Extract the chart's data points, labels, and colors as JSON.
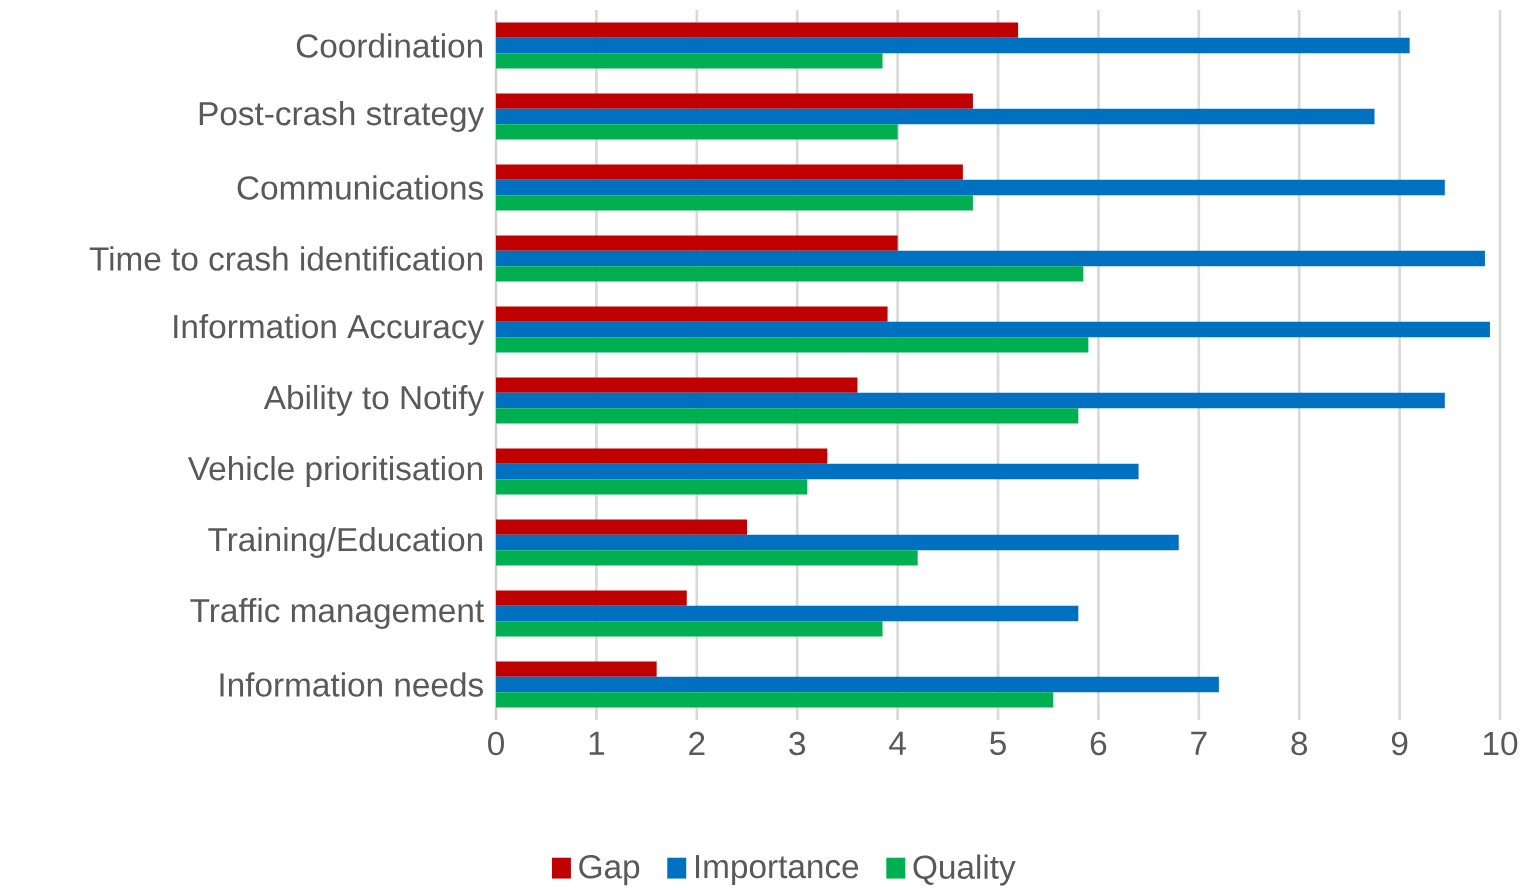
{
  "chart_data": {
    "type": "bar",
    "orientation": "horizontal",
    "categories": [
      "Coordination",
      "Post-crash strategy",
      "Communications",
      "Time to crash identification",
      "Information Accuracy",
      "Ability to Notify",
      "Vehicle prioritisation",
      "Training/Education",
      "Traffic management",
      "Information needs"
    ],
    "series": [
      {
        "name": "Gap",
        "color": "#c00000",
        "values": [
          5.2,
          4.75,
          4.65,
          4.0,
          3.9,
          3.6,
          3.3,
          2.5,
          1.9,
          1.6
        ]
      },
      {
        "name": "Importance",
        "color": "#0070c0",
        "values": [
          9.1,
          8.75,
          9.45,
          9.85,
          9.9,
          9.45,
          6.4,
          6.8,
          5.8,
          7.2
        ]
      },
      {
        "name": "Quality",
        "color": "#00b050",
        "values": [
          3.85,
          4.0,
          4.75,
          5.85,
          5.9,
          5.8,
          3.1,
          4.2,
          3.85,
          5.55
        ]
      }
    ],
    "xlim": [
      0,
      10
    ],
    "xticks": [
      0,
      1,
      2,
      3,
      4,
      5,
      6,
      7,
      8,
      9,
      10
    ],
    "grid": "x",
    "legend": "bottom"
  }
}
